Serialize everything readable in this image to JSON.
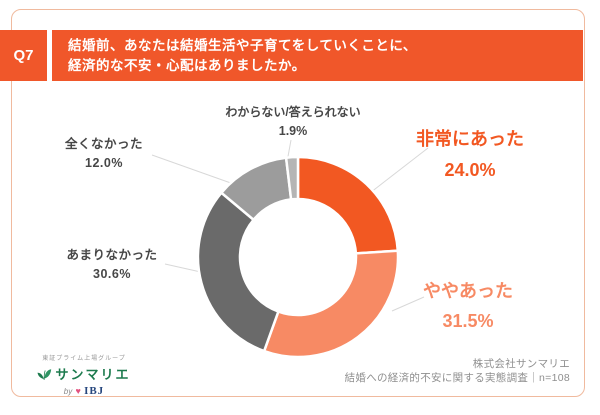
{
  "header": {
    "question_no": "Q7",
    "question_line1": "結婚前、あなたは結婚生活や子育てをしていくことに、",
    "question_line2": "経済的な不安・心配はありましたか。"
  },
  "chart_data": {
    "type": "pie",
    "donut": true,
    "start_angle_deg": 0,
    "direction": "clockwise",
    "categories": [
      "非常にあった",
      "ややあった",
      "あまりなかった",
      "全くなかった",
      "わからない/答えられない"
    ],
    "values": [
      24.0,
      31.5,
      30.6,
      12.0,
      1.9
    ],
    "colors": [
      "#F25822",
      "#F78A64",
      "#6A6A6A",
      "#9C9C9C",
      "#B5B5B5"
    ],
    "unit": "%",
    "n": 108
  },
  "callouts": [
    {
      "label": "非常にあった",
      "pct": "24.0%"
    },
    {
      "label": "ややあった",
      "pct": "31.5%"
    },
    {
      "label": "あまりなかった",
      "pct": "30.6%"
    },
    {
      "label": "全くなかった",
      "pct": "12.0%"
    },
    {
      "label": "わからない/答えられない",
      "pct": "1.9%"
    }
  ],
  "footer": {
    "company": "株式会社サンマリエ",
    "survey": "結婚への経済的不安に関する実態調査｜n=108"
  },
  "logo": {
    "tagline": "東証プライム上場グループ",
    "brand": "サンマリエ",
    "by": "by",
    "ibj": "IBJ"
  },
  "colors": {
    "accent": "#F0572A",
    "card_border": "#F0BA9E",
    "leader_line": "#D8D8D8",
    "label_dark": "#474747",
    "footer_text": "#8F8F8F"
  }
}
